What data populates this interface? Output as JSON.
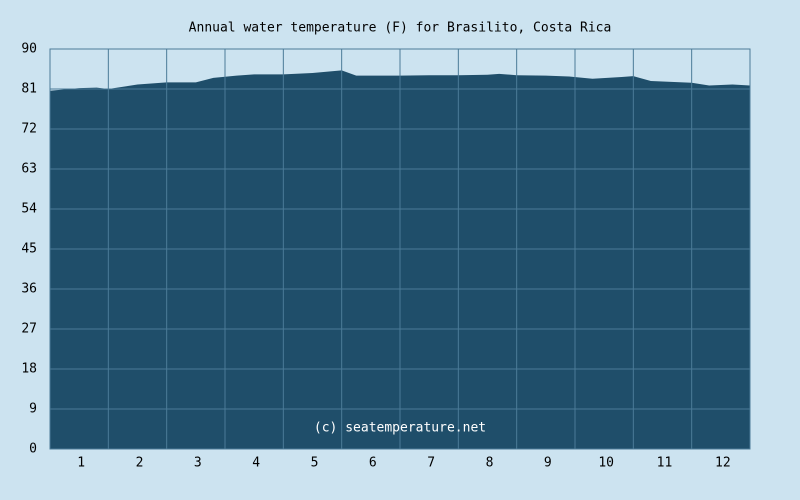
{
  "chart_data": {
    "type": "area",
    "title": "Annual water temperature (F) for Brasilito, Costa Rica",
    "annotation": "(c) seatemperature.net",
    "x": [
      0.5,
      1.0,
      1.3,
      1.5,
      2.0,
      2.5,
      3.0,
      3.3,
      3.7,
      4.0,
      4.5,
      5.0,
      5.5,
      5.75,
      6.5,
      7.0,
      7.5,
      8.0,
      8.2,
      8.5,
      9.0,
      9.4,
      9.8,
      10.3,
      10.5,
      10.8,
      11.5,
      11.8,
      12.2,
      12.5
    ],
    "values": [
      80.6,
      81.2,
      81.3,
      81.0,
      82.0,
      82.5,
      82.5,
      83.5,
      84.0,
      84.3,
      84.3,
      84.6,
      85.2,
      84.0,
      84.0,
      84.1,
      84.1,
      84.2,
      84.4,
      84.1,
      84.0,
      83.8,
      83.3,
      83.7,
      83.9,
      82.8,
      82.4,
      81.8,
      82.0,
      81.8
    ],
    "color": "#1f4e6a",
    "xlim": [
      0.5,
      12.5
    ],
    "xticks": [
      1,
      2,
      3,
      4,
      5,
      6,
      7,
      8,
      9,
      10,
      11,
      12
    ],
    "ylim": [
      0,
      90
    ],
    "yticks": [
      0,
      9,
      18,
      27,
      36,
      45,
      54,
      63,
      72,
      81,
      90
    ],
    "grid": true
  }
}
